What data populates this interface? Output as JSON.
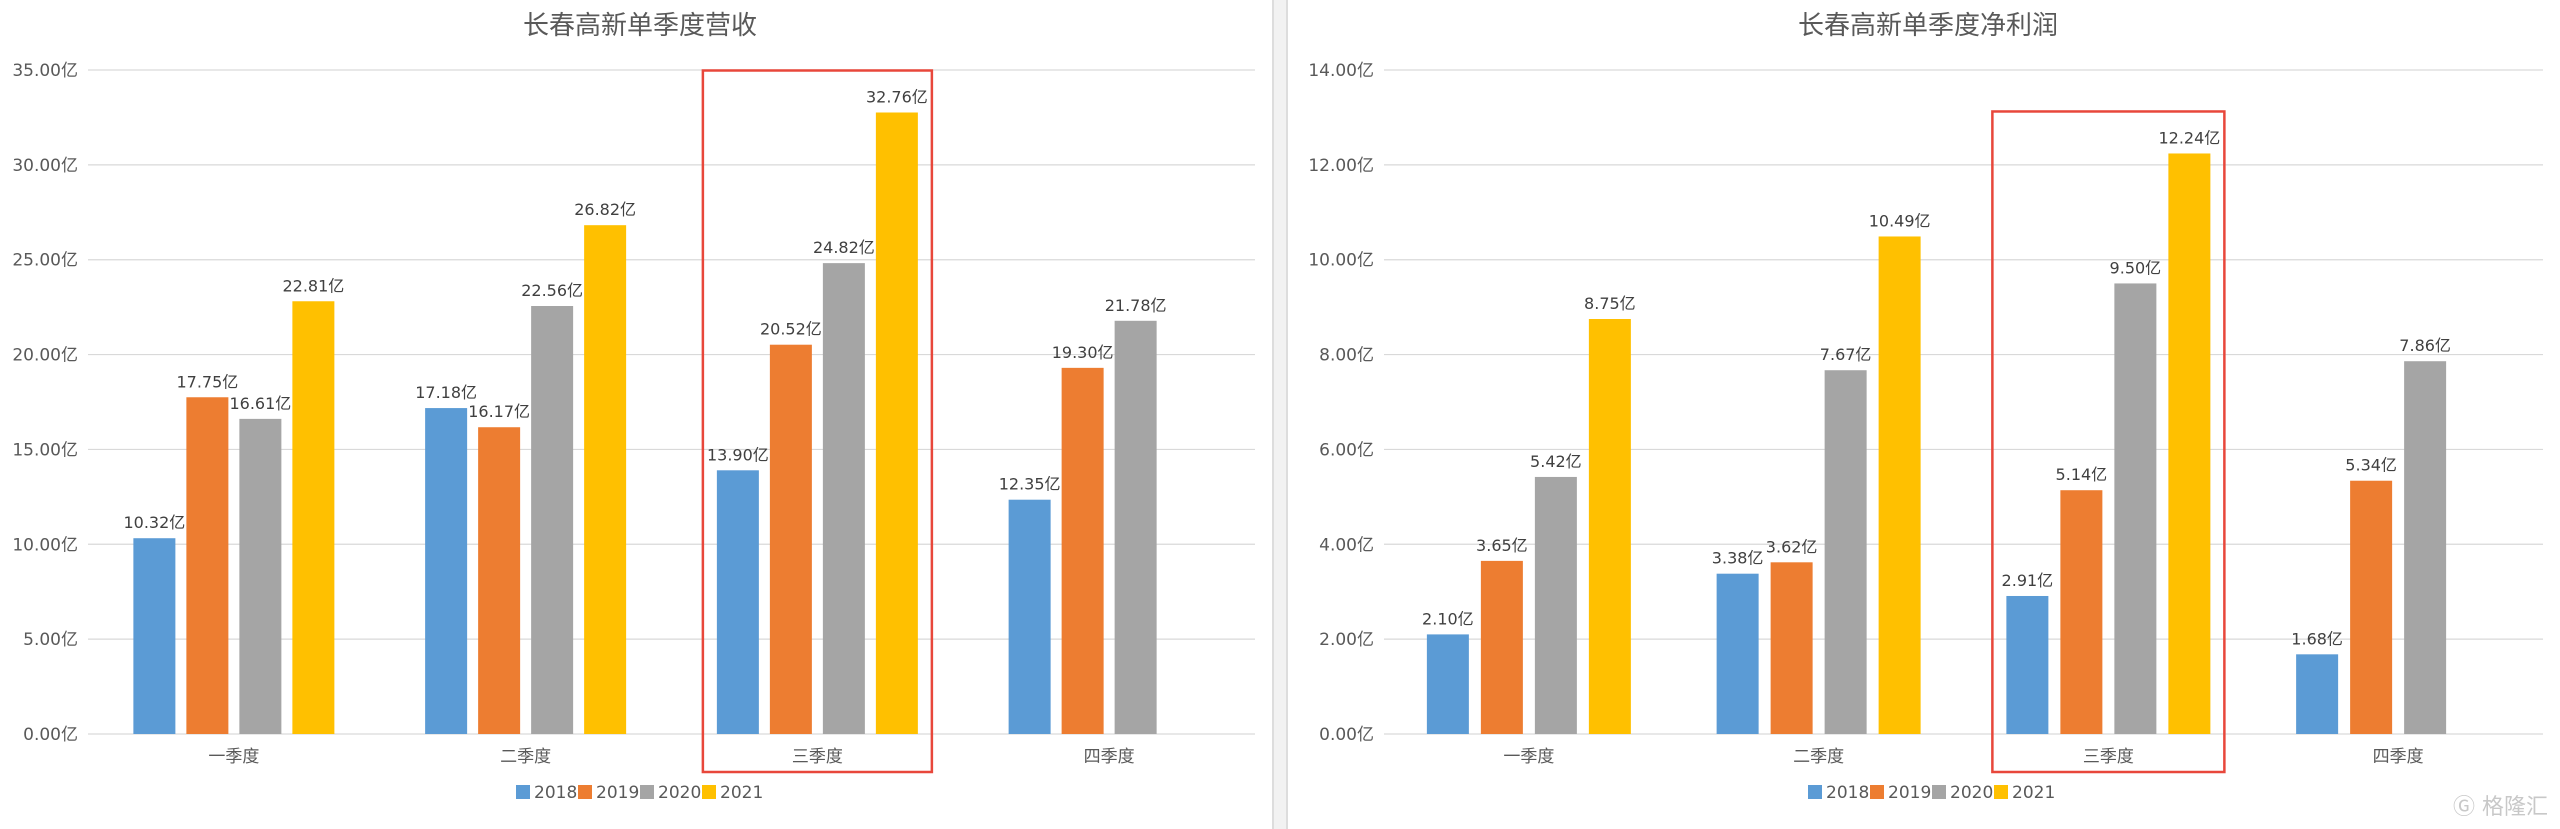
{
  "colors": {
    "2018": "#5b9bd5",
    "2019": "#ed7d31",
    "2020": "#a5a5a5",
    "2021": "#ffc000",
    "highlight": "#e8473b",
    "grid": "#d9d9d9"
  },
  "watermark": {
    "text": "格隆汇",
    "icon": "watermark-logo-icon"
  },
  "chart_data": [
    {
      "type": "bar",
      "title": "长春高新单季度营收",
      "categories": [
        "一季度",
        "二季度",
        "三季度",
        "四季度"
      ],
      "ylim": [
        0,
        35
      ],
      "ytick_labels": [
        "0.00亿",
        "5.00亿",
        "10.00亿",
        "15.00亿",
        "20.00亿",
        "25.00亿",
        "30.00亿",
        "35.00亿"
      ],
      "legend_position": "bottom",
      "grid": true,
      "highlight_category": "三季度",
      "series": [
        {
          "name": "2018",
          "values": [
            10.32,
            17.18,
            13.9,
            12.35
          ],
          "labels": [
            "10.32亿",
            "17.18亿",
            "13.90亿",
            "12.35亿"
          ]
        },
        {
          "name": "2019",
          "values": [
            17.75,
            16.17,
            20.52,
            19.3
          ],
          "labels": [
            "17.75亿",
            "16.17亿",
            "20.52亿",
            "19.30亿"
          ]
        },
        {
          "name": "2020",
          "values": [
            16.61,
            22.56,
            24.82,
            21.78
          ],
          "labels": [
            "16.61亿",
            "22.56亿",
            "24.82亿",
            "21.78亿"
          ]
        },
        {
          "name": "2021",
          "values": [
            22.81,
            26.82,
            32.76,
            null
          ],
          "labels": [
            "22.81亿",
            "26.82亿",
            "32.76亿",
            ""
          ]
        }
      ]
    },
    {
      "type": "bar",
      "title": "长春高新单季度净利润",
      "categories": [
        "一季度",
        "二季度",
        "三季度",
        "四季度"
      ],
      "ylim": [
        0,
        14
      ],
      "ytick_labels": [
        "0.00亿",
        "2.00亿",
        "4.00亿",
        "6.00亿",
        "8.00亿",
        "10.00亿",
        "12.00亿",
        "14.00亿"
      ],
      "legend_position": "bottom",
      "grid": true,
      "highlight_category": "三季度",
      "series": [
        {
          "name": "2018",
          "values": [
            2.1,
            3.38,
            2.91,
            1.68
          ],
          "labels": [
            "2.10亿",
            "3.38亿",
            "2.91亿",
            "1.68亿"
          ]
        },
        {
          "name": "2019",
          "values": [
            3.65,
            3.62,
            5.14,
            5.34
          ],
          "labels": [
            "3.65亿",
            "3.62亿",
            "5.14亿",
            "5.34亿"
          ]
        },
        {
          "name": "2020",
          "values": [
            5.42,
            7.67,
            9.5,
            7.86
          ],
          "labels": [
            "5.42亿",
            "7.67亿",
            "9.50亿",
            "7.86亿"
          ]
        },
        {
          "name": "2021",
          "values": [
            8.75,
            10.49,
            12.24,
            null
          ],
          "labels": [
            "8.75亿",
            "10.49亿",
            "12.24亿",
            ""
          ]
        }
      ]
    }
  ]
}
